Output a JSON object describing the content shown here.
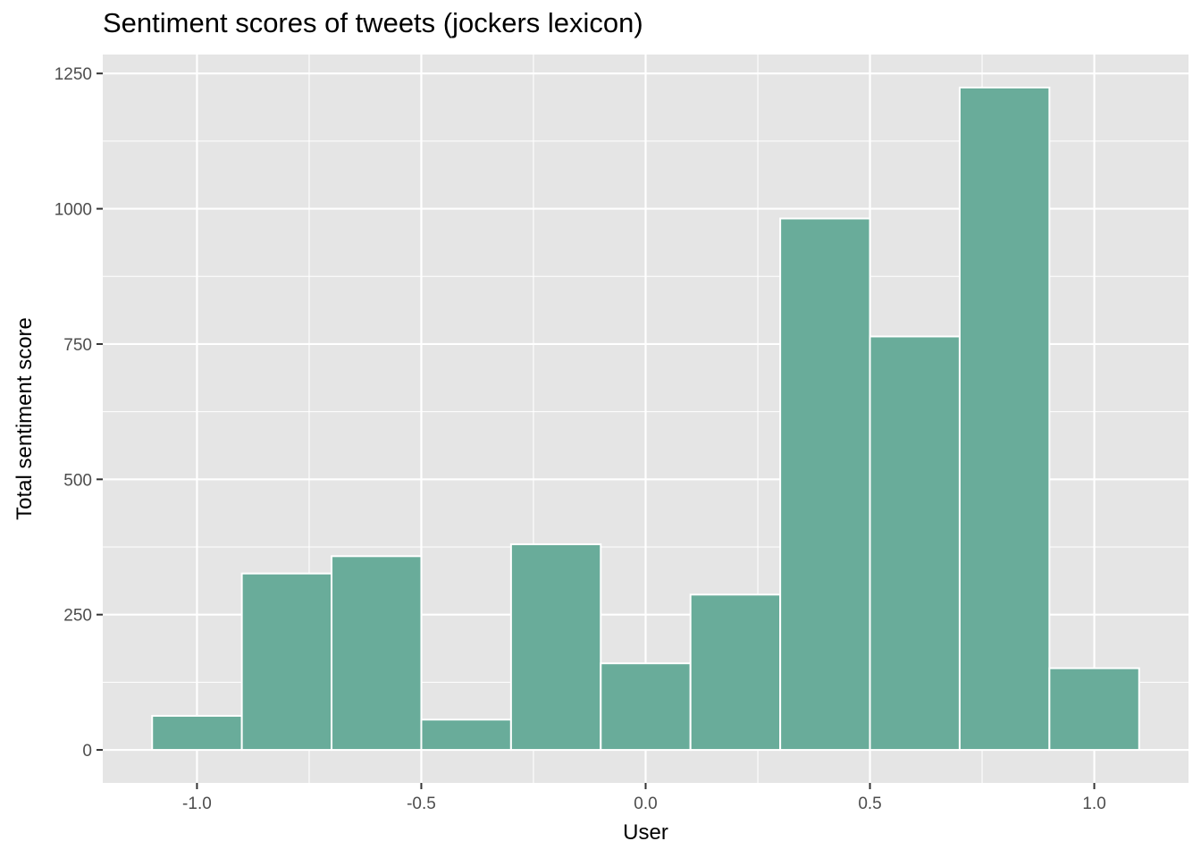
{
  "chart_data": {
    "type": "bar",
    "title": "Sentiment scores of tweets (jockers lexicon)",
    "xlabel": "User",
    "ylabel": "Total sentiment score",
    "bin_width": 0.2,
    "x": [
      -1.0,
      -0.8,
      -0.6,
      -0.4,
      -0.2,
      0.0,
      0.2,
      0.4,
      0.6,
      0.8,
      1.0
    ],
    "values": [
      63,
      326,
      358,
      56,
      380,
      160,
      287,
      982,
      764,
      1224,
      151
    ],
    "xlim": [
      -1.21,
      1.21
    ],
    "ylim": [
      -61,
      1285
    ],
    "x_ticks": [
      -1.0,
      -0.5,
      0.0,
      0.5,
      1.0
    ],
    "x_tick_labels": [
      "-1.0",
      "-0.5",
      "0.0",
      "0.5",
      "1.0"
    ],
    "y_ticks": [
      0,
      250,
      500,
      750,
      1000,
      1250
    ],
    "y_tick_labels": [
      "0",
      "250",
      "500",
      "750",
      "1000",
      "1250"
    ],
    "grid": true,
    "colors": {
      "bar_fill": "#69AC9A",
      "bar_outline": "#ffffff",
      "panel_background": "#e5e5e5",
      "grid": "#ffffff"
    }
  }
}
